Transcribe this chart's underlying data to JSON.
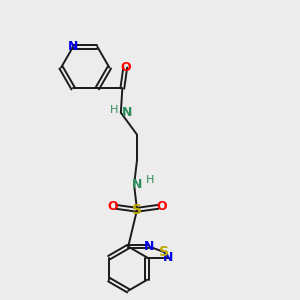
{
  "background_color": "#ececec",
  "bond_color": "#1a1a1a",
  "atom_colors": {
    "N": "#0000ee",
    "O": "#ff0000",
    "S": "#bbaa00",
    "NH": "#2d8c5c",
    "C": "#1a1a1a"
  },
  "figsize": [
    3.0,
    3.0
  ],
  "dpi": 100
}
